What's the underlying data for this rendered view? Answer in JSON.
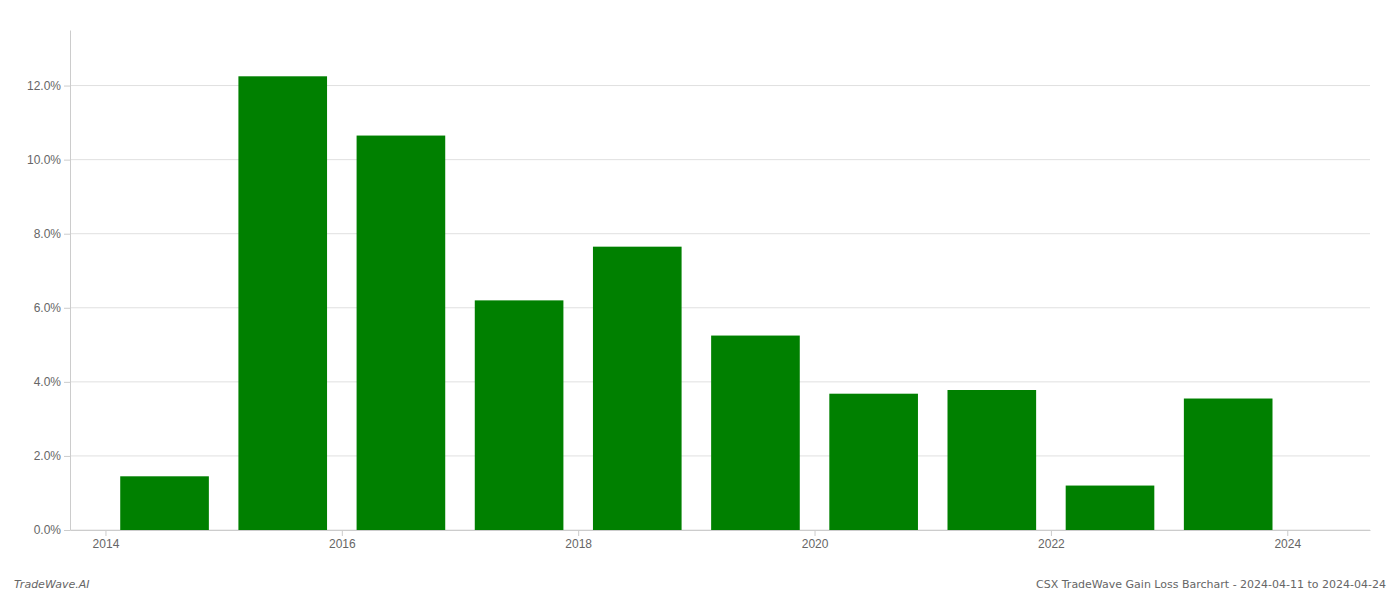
{
  "chart_data": {
    "type": "bar",
    "title": "CSX TradeWave Gain Loss Barchart - 2024-04-11 to 2024-04-24",
    "annotations": [
      "TradeWave.AI"
    ],
    "x": [
      2014,
      2015,
      2016,
      2017,
      2018,
      2019,
      2020,
      2021,
      2022,
      2023
    ],
    "values": [
      0.0145,
      0.1225,
      0.1065,
      0.062,
      0.0765,
      0.0525,
      0.0368,
      0.0378,
      0.012,
      0.0355
    ],
    "color": "#008000",
    "xlim": [
      2013.7,
      2024.7
    ],
    "xticks": [
      2014,
      2016,
      2018,
      2020,
      2022,
      2024
    ],
    "ylim": [
      0,
      0.135
    ],
    "yticks": [
      {
        "value": 0,
        "label": "0.0%"
      },
      {
        "value": 0.02,
        "label": "2.0%"
      },
      {
        "value": 0.04,
        "label": "4.0%"
      },
      {
        "value": 0.06,
        "label": "6.0%"
      },
      {
        "value": 0.08,
        "label": "8.0%"
      },
      {
        "value": 0.1,
        "label": "10.0%"
      },
      {
        "value": 0.12,
        "label": "12.0%"
      }
    ],
    "grid": true
  }
}
